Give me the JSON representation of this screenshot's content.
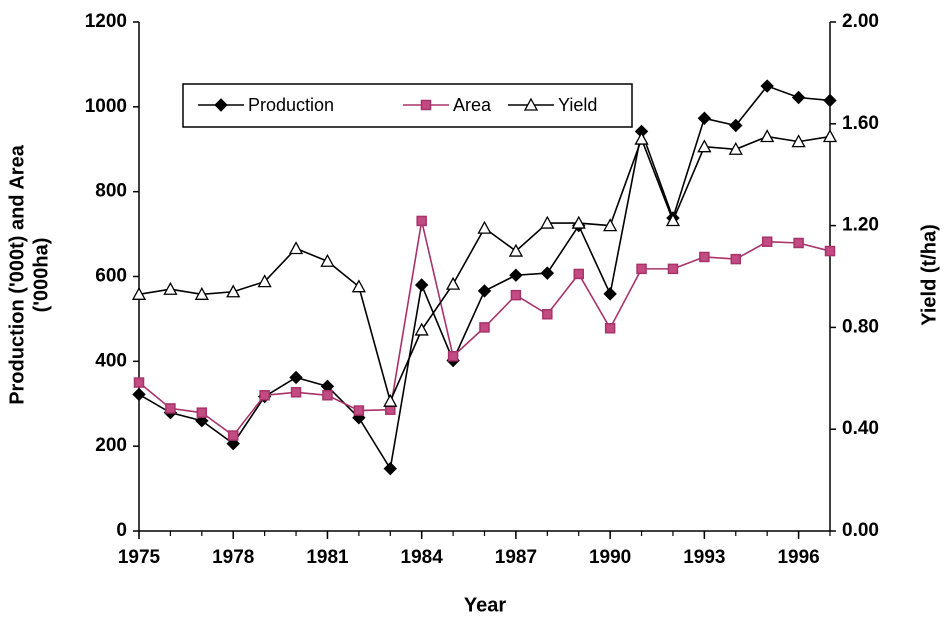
{
  "chart_data": {
    "type": "line",
    "x_label": "Year",
    "y_label": [
      "Production ('000t) and Area",
      "('000ha)"
    ],
    "y2_label": "Yield (t/ha)",
    "x": [
      1975,
      1976,
      1977,
      1978,
      1979,
      1980,
      1981,
      1982,
      1983,
      1984,
      1985,
      1986,
      1987,
      1988,
      1989,
      1990,
      1991,
      1992,
      1993,
      1994,
      1995,
      1996,
      1997
    ],
    "xlim": [
      1975,
      1997
    ],
    "xticks": [
      1975,
      1978,
      1981,
      1984,
      1987,
      1990,
      1993,
      1996
    ],
    "ylim": [
      0,
      1200
    ],
    "yticks": [
      0,
      200,
      400,
      600,
      800,
      1000,
      1200
    ],
    "y2lim": [
      0,
      2
    ],
    "y2ticks": [
      {
        "value": 0,
        "label": "0.00"
      },
      {
        "value": 0.4,
        "label": "0.40"
      },
      {
        "value": 0.8,
        "label": "0.80"
      },
      {
        "value": 1.2,
        "label": "1.20"
      },
      {
        "value": 1.6,
        "label": "1.60"
      },
      {
        "value": 2,
        "label": "2.00"
      }
    ],
    "legend": "top-left",
    "series": [
      {
        "name": "Production",
        "color": "#000000",
        "marker": "diamond",
        "values": [
          322,
          279,
          260,
          206,
          317,
          362,
          341,
          267,
          147,
          580,
          402,
          566,
          603,
          608,
          720,
          559,
          942,
          738,
          973,
          956,
          1049,
          1022,
          1015
        ]
      },
      {
        "name": "Area",
        "color": "#a8336a",
        "marker": "square",
        "values": [
          350,
          289,
          279,
          225,
          320,
          327,
          320,
          284,
          286,
          731,
          412,
          480,
          556,
          511,
          606,
          478,
          618,
          618,
          646,
          641,
          682,
          679,
          660
        ]
      },
      {
        "name": "Yield",
        "color": "#000000",
        "marker": "triangle",
        "axis": "y2",
        "values": [
          0.93,
          0.95,
          0.93,
          0.94,
          0.98,
          1.11,
          1.06,
          0.96,
          0.51,
          0.79,
          0.97,
          1.19,
          1.1,
          1.21,
          1.21,
          1.2,
          1.54,
          1.22,
          1.51,
          1.5,
          1.55,
          1.53,
          1.55
        ]
      }
    ]
  }
}
